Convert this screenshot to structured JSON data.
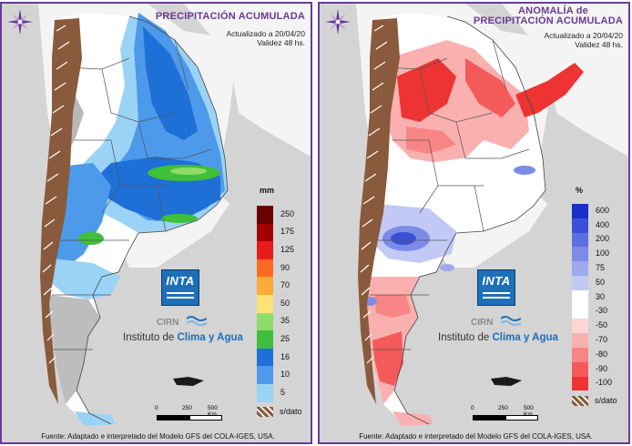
{
  "left_panel": {
    "title_line1": "PRECIPITACIÓN ACUMULADA",
    "updated": "Actualizado a 20/04/20",
    "validity": "Validez 48 hs.",
    "unit": "mm",
    "legend": [
      {
        "label": "250",
        "color": "#6b0000"
      },
      {
        "label": "175",
        "color": "#a30000"
      },
      {
        "label": "125",
        "color": "#e81b1b"
      },
      {
        "label": "90",
        "color": "#fb6a20"
      },
      {
        "label": "70",
        "color": "#fcaa3a"
      },
      {
        "label": "50",
        "color": "#fde27a"
      },
      {
        "label": "35",
        "color": "#8fdc6a"
      },
      {
        "label": "25",
        "color": "#3fbf3a"
      },
      {
        "label": "16",
        "color": "#1e6fd6"
      },
      {
        "label": "10",
        "color": "#4d99ea"
      },
      {
        "label": "5",
        "color": "#9ad3f5"
      }
    ],
    "nodata_label": "s/dato",
    "inta_logo": "INTA",
    "cirn": "CIRN",
    "institute_prefix": "Instituto de",
    "institute_highlight": "Clima y Agua",
    "scale_labels": [
      "0",
      "250",
      "500 Km"
    ],
    "source": "Fuente: Adaptado e interpretado del Modelo GFS del COLA-IGES, USA."
  },
  "right_panel": {
    "title_line1": "ANOMALÍA de",
    "title_line2": "PRECIPITACIÓN ACUMULADA",
    "updated": "Actualizado a 20/04/20",
    "validity": "Validez 48 hs.",
    "unit": "%",
    "legend": [
      {
        "label": "600",
        "color": "#1a2fc9"
      },
      {
        "label": "400",
        "color": "#3a50d8"
      },
      {
        "label": "200",
        "color": "#5b6fe0"
      },
      {
        "label": "100",
        "color": "#7c8ce6"
      },
      {
        "label": "75",
        "color": "#9ea9ee"
      },
      {
        "label": "50",
        "color": "#c2c9f5"
      },
      {
        "label": "30",
        "color": "#ffffff"
      },
      {
        "label": "-30",
        "color": "#ffffff"
      },
      {
        "label": "-50",
        "color": "#fdd5d5"
      },
      {
        "label": "-70",
        "color": "#fbb0b0"
      },
      {
        "label": "-80",
        "color": "#f88585"
      },
      {
        "label": "-90",
        "color": "#f45a5a"
      },
      {
        "label": "-100",
        "color": "#ee3333"
      }
    ],
    "nodata_label": "s/dato",
    "inta_logo": "INTA",
    "cirn": "CIRN",
    "institute_prefix": "Instituto de",
    "institute_highlight": "Clima y Agua",
    "scale_labels": [
      "0",
      "250",
      "500 Km"
    ],
    "source": "Fuente: Adaptado e interpretado del Modelo GFS del COLA-IGES, USA."
  }
}
